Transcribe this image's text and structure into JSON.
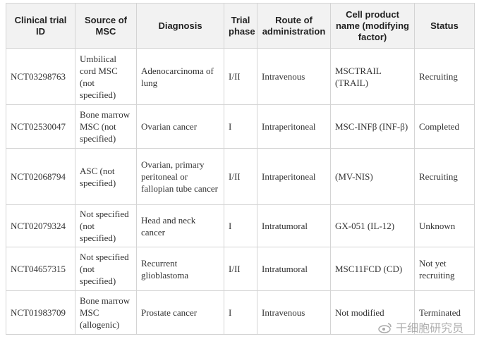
{
  "table": {
    "headers": [
      "Clinical trial ID",
      "Source of MSC",
      "Diagnosis",
      "Trial phase",
      "Route of administration",
      "Cell product name (modifying factor)",
      "Status"
    ],
    "rows": [
      [
        "NCT03298763",
        "Umbilical cord MSC (not specified)",
        "Adenocarcinoma of lung",
        "I/II",
        "Intravenous",
        "MSCTRAIL (TRAIL)",
        "Recruiting"
      ],
      [
        "NCT02530047",
        "Bone marrow MSC (not specified)",
        "Ovarian cancer",
        "I",
        "Intraperitoneal",
        "MSC-INFβ (INF-β)",
        "Completed"
      ],
      [
        "NCT02068794",
        "ASC (not specified)",
        "Ovarian, primary peritoneal or fallopian tube cancer",
        "I/II",
        "Intraperitoneal",
        "(MV-NIS)",
        "Recruiting"
      ],
      [
        "NCT02079324",
        "Not specified (not specified)",
        "Head and neck cancer",
        "I",
        "Intratumoral",
        "GX-051 (IL-12)",
        "Unknown"
      ],
      [
        "NCT04657315",
        "Not specified (not specified)",
        "Recurrent glioblastoma",
        "I/II",
        "Intratumoral",
        "MSC11FCD (CD)",
        "Not yet recruiting"
      ],
      [
        "NCT01983709",
        "Bone marrow MSC (allogenic)",
        "Prostate cancer",
        "I",
        "Intravenous",
        "Not modified",
        "Terminated"
      ]
    ]
  },
  "watermark": "干细胞研究员"
}
